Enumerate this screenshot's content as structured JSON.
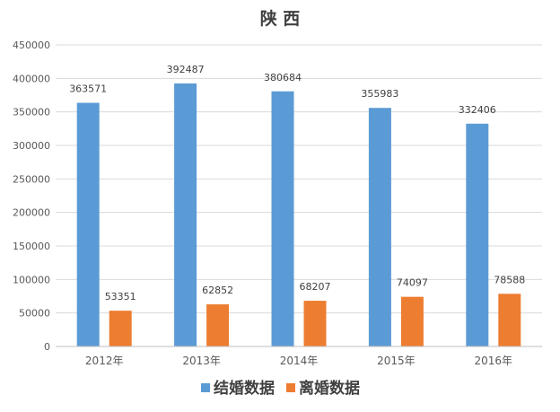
{
  "chart_data": {
    "type": "bar",
    "title": "陕 西",
    "categories": [
      "2012年",
      "2013年",
      "2014年",
      "2015年",
      "2016年"
    ],
    "series": [
      {
        "name": "结婚数据",
        "color": "#5B9BD5",
        "values": [
          363571,
          392487,
          380684,
          355983,
          332406
        ]
      },
      {
        "name": "离婚数据",
        "color": "#ED7D31",
        "values": [
          53351,
          62852,
          68207,
          74097,
          78588
        ]
      }
    ],
    "ylim": [
      0,
      450000
    ],
    "yticks": [
      0,
      50000,
      100000,
      150000,
      200000,
      250000,
      300000,
      350000,
      400000,
      450000
    ],
    "grid": true,
    "legend_position": "bottom"
  }
}
